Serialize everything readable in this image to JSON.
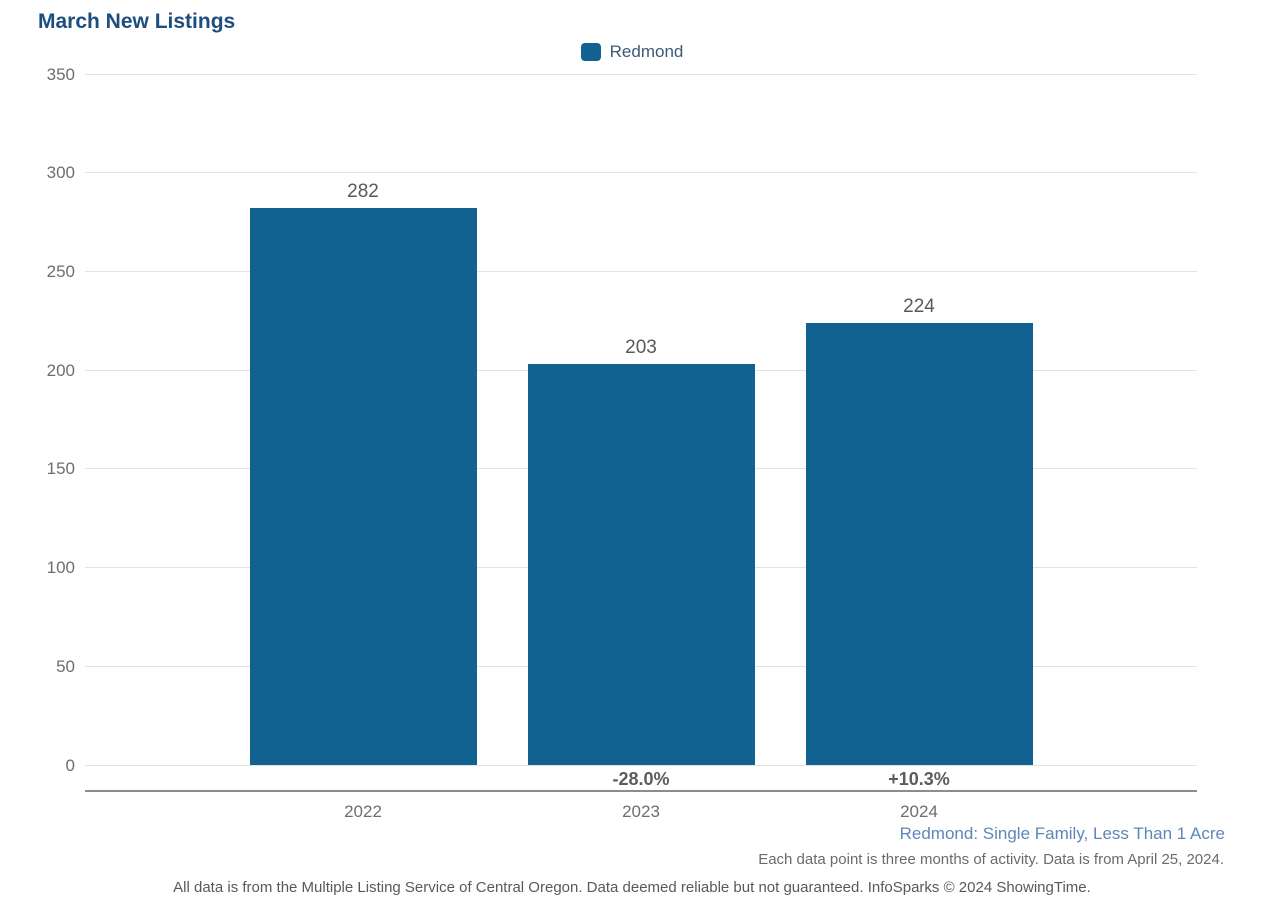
{
  "chart_data": {
    "type": "bar",
    "title": "March New Listings",
    "categories": [
      "2022",
      "2023",
      "2024"
    ],
    "series": [
      {
        "name": "Redmond",
        "color": "#116291",
        "values": [
          282,
          203,
          224
        ]
      }
    ],
    "value_labels": [
      "282",
      "203",
      "224"
    ],
    "pct_change_labels": [
      "",
      "-28.0%",
      "+10.3%"
    ],
    "xlabel": "",
    "ylabel": "",
    "ylim": [
      0,
      350
    ],
    "yticks": [
      0,
      50,
      100,
      150,
      200,
      250,
      300,
      350
    ],
    "grid": true,
    "legend_position": "top-center"
  },
  "footnotes": {
    "segment_filter": "Redmond: Single Family, Less Than 1 Acre",
    "data_note": "Each data point is three months of activity. Data is from April 25, 2024.",
    "disclaimer": "All data is from the Multiple Listing Service of Central Oregon. Data deemed reliable but not guaranteed. InfoSparks © 2024 ShowingTime."
  },
  "colors": {
    "bar": "#116291",
    "title_text": "#1d4e7e",
    "legend_text": "#3c5a76",
    "axis_text": "#6e6e6e",
    "value_text": "#58595b",
    "pct_text": "#5c5c5c",
    "segment_text": "#5d87b8",
    "gridline": "#e2e2e2",
    "axis_line": "#8c8c8c"
  }
}
